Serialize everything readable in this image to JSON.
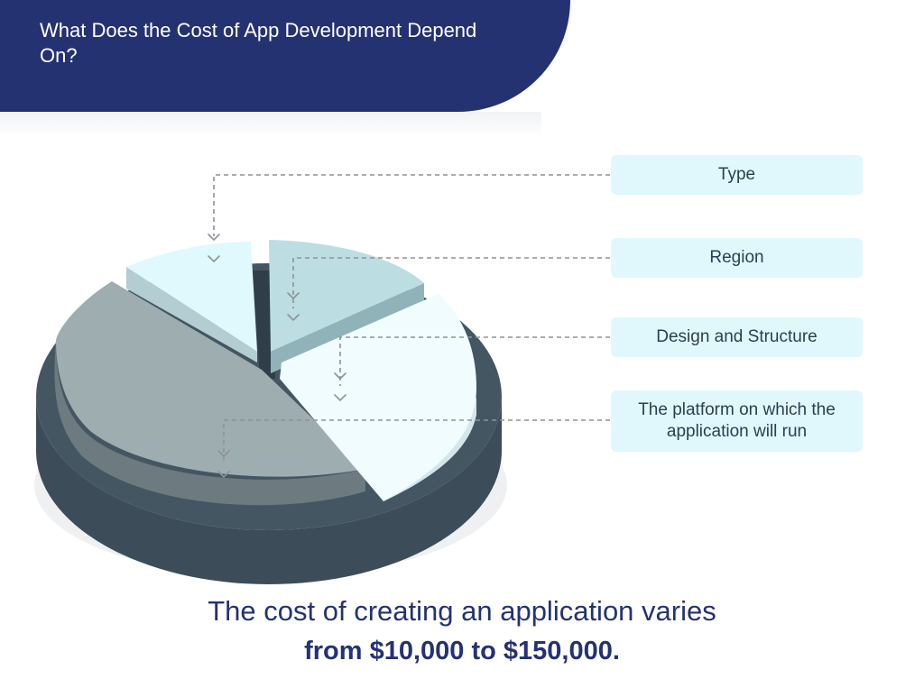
{
  "header": {
    "title": "What Does the Cost of App Development Depend On?"
  },
  "labels": [
    {
      "text": "Type"
    },
    {
      "text": "Region"
    },
    {
      "text": "Design and Structure"
    },
    {
      "text": "The platform on which the application will run"
    }
  ],
  "footer": {
    "line1": "The cost of creating an application varies",
    "line2": "from $10,000 to $150,000."
  },
  "colors": {
    "banner": "#253272",
    "label_bg": "#e0f8fc",
    "base_dark": "#3c4d59",
    "slice_large": "#9dadb0",
    "slice_light": "#dff9fd",
    "slice_mid": "#bcdde2",
    "slice_white": "#f1fcfe"
  }
}
